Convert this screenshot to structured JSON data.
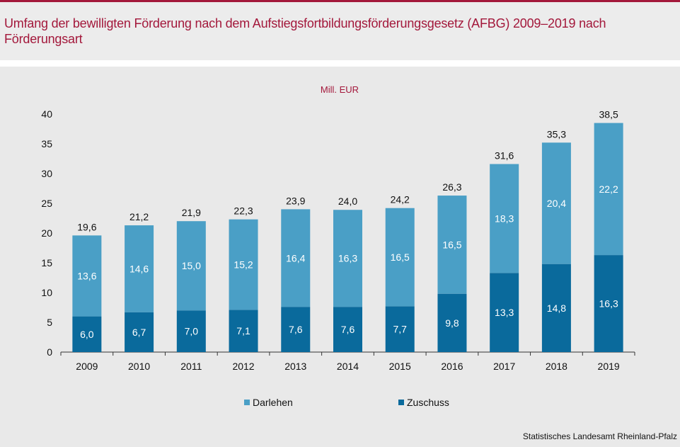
{
  "title": "Umfang der bewilligten Förderung nach dem Aufstiegsfortbildungsförderungsgesetz (AFBG) 2009–2019 nach Förderungsart",
  "source": "Statistisches Landesamt Rheinland-Pfalz",
  "colors": {
    "brand": "#a3183b",
    "darlehen": "#4a9fc6",
    "zuschuss": "#0a6a9c"
  },
  "chart_data": {
    "type": "bar",
    "stacked": true,
    "unit_label": "Mill.  EUR",
    "categories": [
      "2009",
      "2010",
      "2011",
      "2012",
      "2013",
      "2014",
      "2015",
      "2016",
      "2017",
      "2018",
      "2019"
    ],
    "series": [
      {
        "name": "Zuschuss",
        "color": "#0a6a9c",
        "values": [
          6.0,
          6.7,
          7.0,
          7.1,
          7.6,
          7.6,
          7.7,
          9.8,
          13.3,
          14.8,
          16.3
        ],
        "labels": [
          "6,0",
          "6,7",
          "7,0",
          "7,1",
          "7,6",
          "7,6",
          "7,7",
          "9,8",
          "13,3",
          "14,8",
          "16,3"
        ]
      },
      {
        "name": "Darlehen",
        "color": "#4a9fc6",
        "values": [
          13.6,
          14.6,
          15.0,
          15.2,
          16.4,
          16.3,
          16.5,
          16.5,
          18.3,
          20.4,
          22.2
        ],
        "labels": [
          "13,6",
          "14,6",
          "15,0",
          "15,2",
          "16,4",
          "16,3",
          "16,5",
          "16,5",
          "18,3",
          "20,4",
          "22,2"
        ]
      }
    ],
    "totals": [
      19.6,
      21.2,
      21.9,
      22.3,
      23.9,
      24.0,
      24.2,
      26.3,
      31.6,
      35.3,
      38.5
    ],
    "total_labels": [
      "19,6",
      "21,2",
      "21,9",
      "22,3",
      "23,9",
      "24,0",
      "24,2",
      "26,3",
      "31,6",
      "35,3",
      "38,5"
    ],
    "yticks": [
      0,
      5,
      10,
      15,
      20,
      25,
      30,
      35,
      40
    ],
    "ylim": [
      0,
      40
    ],
    "grid": false,
    "legend": [
      "Darlehen",
      "Zuschuss"
    ],
    "legend_position": "bottom"
  }
}
